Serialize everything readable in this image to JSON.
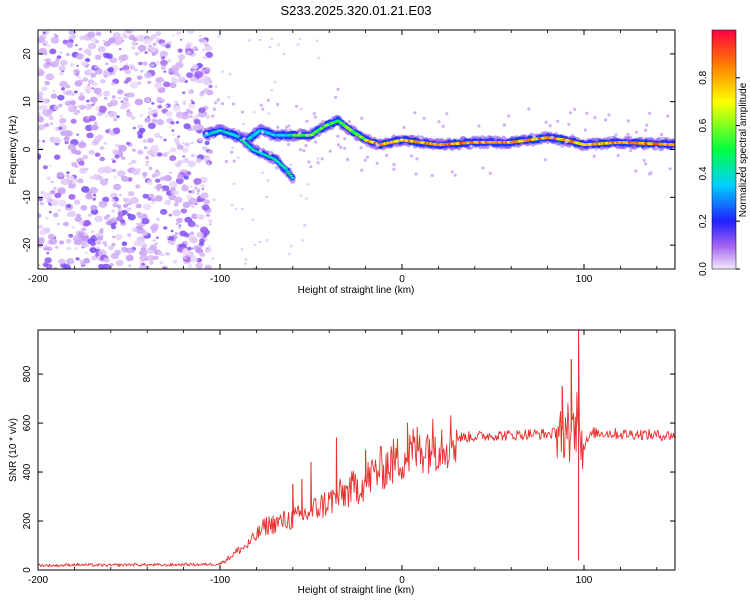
{
  "title": "S233.2025.320.01.21.E03",
  "colors": {
    "snr_line": "#e8322f",
    "background": "#ffffff",
    "axis": "#000000"
  },
  "chart_data": [
    {
      "type": "heatmap",
      "name": "spectrogram",
      "xlabel": "Height of straight line (km)",
      "ylabel": "Frequency (Hz)",
      "xlim": [
        -200,
        150
      ],
      "ylim": [
        -25,
        25
      ],
      "xticks": [
        -200,
        -100,
        0,
        100
      ],
      "xtick_labels": [
        "-200",
        "-100",
        "0",
        "100"
      ],
      "yticks": [
        -20,
        -10,
        0,
        10,
        20
      ],
      "ytick_labels": [
        "-20",
        "-10",
        "0",
        "10",
        "20"
      ],
      "colorbar": {
        "label": "Normalized spectral amplitude",
        "range": [
          0,
          1
        ],
        "ticks": [
          0.0,
          0.2,
          0.4,
          0.6,
          0.8
        ],
        "tick_labels": [
          "0.0",
          "0.2",
          "0.4",
          "0.6",
          "0.8"
        ],
        "stops": [
          {
            "v": 0.0,
            "color": "#f4e8fb"
          },
          {
            "v": 0.1,
            "color": "#a060f0"
          },
          {
            "v": 0.2,
            "color": "#2020ff"
          },
          {
            "v": 0.35,
            "color": "#00d0ff"
          },
          {
            "v": 0.5,
            "color": "#00ff40"
          },
          {
            "v": 0.7,
            "color": "#ffff00"
          },
          {
            "v": 0.85,
            "color": "#ff8000"
          },
          {
            "v": 1.0,
            "color": "#ff0040"
          }
        ]
      },
      "noise_region_x": [
        -200,
        -105
      ],
      "signal_ridge": {
        "x": [
          -108,
          -100,
          -92,
          -85,
          -78,
          -70,
          -60,
          -50,
          -42,
          -35,
          -28,
          -20,
          -12,
          0,
          20,
          40,
          60,
          80,
          90,
          100,
          120,
          150
        ],
        "freq_hz": [
          3,
          4,
          3,
          2,
          4,
          3,
          3,
          3,
          5,
          6,
          4,
          2,
          1,
          2,
          1,
          1.5,
          1.5,
          2.5,
          2,
          1,
          1.5,
          1
        ]
      },
      "descending_branch": {
        "x": [
          -88,
          -82,
          -76,
          -70,
          -64,
          -60
        ],
        "freq_hz": [
          2,
          0,
          -1,
          -2,
          -4,
          -6
        ]
      }
    },
    {
      "type": "line",
      "name": "snr",
      "xlabel": "Height of straight line (km)",
      "ylabel": "SNR (10 * v/v)",
      "xlim": [
        -200,
        150
      ],
      "ylim": [
        0,
        980
      ],
      "xticks": [
        -200,
        -100,
        0,
        100
      ],
      "xtick_labels": [
        "-200",
        "-100",
        "0",
        "100"
      ],
      "yticks": [
        0,
        200,
        400,
        600,
        800
      ],
      "ytick_labels": [
        "0",
        "200",
        "400",
        "600",
        "800"
      ],
      "series": [
        {
          "name": "SNR",
          "x": [
            -200,
            -190,
            -180,
            -170,
            -160,
            -150,
            -140,
            -130,
            -120,
            -110,
            -100,
            -95,
            -90,
            -85,
            -80,
            -75,
            -70,
            -65,
            -60,
            -55,
            -50,
            -45,
            -40,
            -35,
            -30,
            -25,
            -20,
            -15,
            -10,
            -5,
            0,
            5,
            10,
            15,
            20,
            25,
            30,
            40,
            50,
            60,
            70,
            80,
            85,
            90,
            95,
            97,
            99,
            105,
            110,
            120,
            130,
            140,
            150
          ],
          "y": [
            20,
            18,
            22,
            20,
            19,
            22,
            21,
            20,
            23,
            22,
            25,
            50,
            80,
            100,
            140,
            180,
            190,
            200,
            210,
            220,
            240,
            260,
            280,
            300,
            320,
            340,
            360,
            400,
            420,
            440,
            460,
            480,
            500,
            510,
            520,
            530,
            540,
            545,
            550,
            550,
            555,
            555,
            560,
            580,
            560,
            700,
            500,
            560,
            560,
            555,
            555,
            550,
            550
          ]
        }
      ],
      "spikes": [
        {
          "x": -60,
          "y": 350
        },
        {
          "x": -55,
          "y": 370
        },
        {
          "x": -50,
          "y": 440
        },
        {
          "x": -36,
          "y": 540
        },
        {
          "x": -20,
          "y": 490
        },
        {
          "x": 3,
          "y": 600
        },
        {
          "x": 88,
          "y": 750
        },
        {
          "x": 93,
          "y": 860
        },
        {
          "x": 97,
          "y": 980
        },
        {
          "x": 97,
          "y": 40
        }
      ]
    }
  ]
}
